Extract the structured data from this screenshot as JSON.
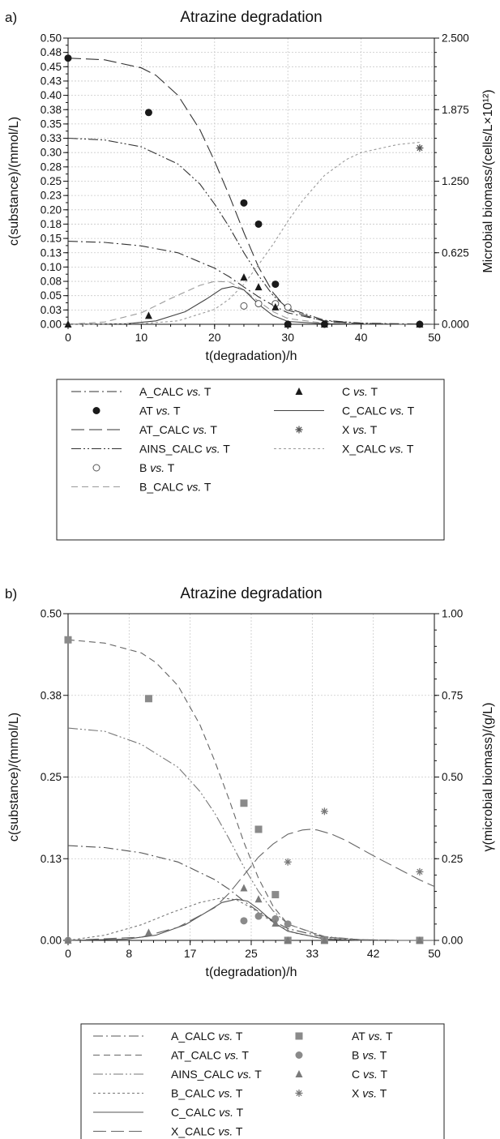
{
  "chart_data": [
    {
      "panel_label": "a)",
      "type": "line",
      "title": "Atrazine degradation",
      "xlabel": "t(degradation)/h",
      "ylabel": "c(substance)/(mmol/L)",
      "y2label": "Microbial biomass/(cells/L×10¹²)",
      "xlim": [
        0,
        50
      ],
      "ylim": [
        0,
        0.5
      ],
      "y2lim": [
        0,
        2.5
      ],
      "xticks": [
        "0",
        "10",
        "20",
        "30",
        "40",
        "50"
      ],
      "yticks": [
        "0.00",
        "0.03",
        "0.05",
        "0.08",
        "0.10",
        "0.13",
        "0.15",
        "0.18",
        "0.20",
        "0.23",
        "0.25",
        "0.28",
        "0.30",
        "0.33",
        "0.35",
        "0.38",
        "0.40",
        "0.43",
        "0.45",
        "0.48",
        "0.50"
      ],
      "y2ticks": [
        "0.000",
        "0.625",
        "1.250",
        "1.875",
        "2.500"
      ],
      "grid": true,
      "legend_position": "below",
      "series": [
        {
          "name": "A_CALC vs. T",
          "kind": "line",
          "axis": "left",
          "dash": "dashdot",
          "color": "#333333",
          "x": [
            0,
            5,
            10,
            15,
            20,
            22,
            24,
            26,
            28,
            30,
            35,
            40,
            45,
            50
          ],
          "y": [
            0.145,
            0.143,
            0.137,
            0.125,
            0.098,
            0.083,
            0.065,
            0.048,
            0.033,
            0.02,
            0.006,
            0.002,
            0.001,
            0.0
          ]
        },
        {
          "name": "AT vs. T",
          "kind": "marker",
          "axis": "left",
          "marker": "filled-circle",
          "color": "#1a1a1a",
          "x": [
            0,
            11,
            24,
            26,
            28.3,
            30,
            35,
            48
          ],
          "y": [
            0.465,
            0.37,
            0.212,
            0.175,
            0.07,
            0.0,
            0.0,
            0.0
          ]
        },
        {
          "name": "AT_CALC vs. T",
          "kind": "line",
          "axis": "left",
          "dash": "longdash",
          "color": "#333333",
          "x": [
            0,
            5,
            10,
            12,
            15,
            18,
            20,
            22,
            24,
            26,
            28,
            30,
            35,
            40,
            45,
            50
          ],
          "y": [
            0.465,
            0.462,
            0.448,
            0.435,
            0.4,
            0.34,
            0.285,
            0.225,
            0.16,
            0.1,
            0.055,
            0.025,
            0.005,
            0.001,
            0.0,
            0.0
          ]
        },
        {
          "name": "AINS_CALC vs. T",
          "kind": "line",
          "axis": "left",
          "dash": "dashdotdot",
          "color": "#333333",
          "x": [
            0,
            5,
            10,
            15,
            18,
            20,
            22,
            24,
            26,
            28,
            30,
            35,
            40,
            45,
            50
          ],
          "y": [
            0.325,
            0.322,
            0.31,
            0.28,
            0.245,
            0.21,
            0.17,
            0.125,
            0.085,
            0.05,
            0.028,
            0.007,
            0.002,
            0.0,
            0.0
          ]
        },
        {
          "name": "B vs. T",
          "kind": "marker",
          "axis": "left",
          "marker": "open-circle",
          "color": "#555555",
          "x": [
            24,
            26,
            28.3,
            30
          ],
          "y": [
            0.032,
            0.036,
            0.036,
            0.03
          ]
        },
        {
          "name": "B_CALC vs. T",
          "kind": "line",
          "axis": "left",
          "dash": "dash",
          "color": "#9a9a9a",
          "x": [
            0,
            5,
            10,
            14,
            18,
            20,
            22,
            24,
            26,
            28,
            30,
            35,
            40,
            50
          ],
          "y": [
            0.0,
            0.004,
            0.02,
            0.045,
            0.068,
            0.075,
            0.074,
            0.06,
            0.04,
            0.022,
            0.01,
            0.002,
            0.0,
            0.0
          ]
        },
        {
          "name": "C vs. T",
          "kind": "marker",
          "axis": "left",
          "marker": "filled-triangle",
          "color": "#1a1a1a",
          "x": [
            0,
            11,
            24,
            26,
            28.3,
            30,
            35,
            48
          ],
          "y": [
            0.0,
            0.015,
            0.082,
            0.065,
            0.03,
            0.0,
            0.0,
            0.0
          ]
        },
        {
          "name": "C_CALC vs. T",
          "kind": "line",
          "axis": "left",
          "dash": "solid",
          "color": "#444444",
          "x": [
            0,
            8,
            12,
            16,
            19,
            21,
            22.5,
            24,
            26,
            28,
            30,
            35,
            40,
            50
          ],
          "y": [
            0.0,
            0.001,
            0.006,
            0.022,
            0.045,
            0.062,
            0.066,
            0.06,
            0.035,
            0.015,
            0.005,
            0.001,
            0.0,
            0.0
          ]
        },
        {
          "name": "X vs. T",
          "kind": "marker",
          "axis": "right",
          "marker": "asterisk",
          "color": "#555555",
          "x": [
            48
          ],
          "y": [
            1.54
          ]
        },
        {
          "name": "X_CALC vs. T",
          "kind": "line",
          "axis": "right",
          "dash": "shortdash",
          "color": "#9a9a9a",
          "x": [
            0,
            10,
            15,
            20,
            22,
            24,
            26,
            28,
            30,
            32,
            35,
            38,
            40,
            45,
            48
          ],
          "y": [
            0.0,
            0.005,
            0.03,
            0.13,
            0.22,
            0.35,
            0.52,
            0.7,
            0.9,
            1.08,
            1.3,
            1.44,
            1.5,
            1.57,
            1.59
          ]
        }
      ]
    },
    {
      "panel_label": "b)",
      "type": "line",
      "title": "Atrazine degradation",
      "xlabel": "t(degradation)/h",
      "ylabel": "c(substance)/(mmol/L)",
      "y2label": "γ(microbial biomass)/(g/L)",
      "xlim": [
        0,
        50
      ],
      "ylim": [
        0,
        0.5
      ],
      "y2lim": [
        0,
        1.0
      ],
      "xticks": [
        "0",
        "8",
        "17",
        "25",
        "33",
        "42",
        "50"
      ],
      "yticks": [
        "0.00",
        "0.13",
        "0.25",
        "0.38",
        "0.50"
      ],
      "y2ticks": [
        "0.00",
        "0.25",
        "0.50",
        "0.75",
        "1.00"
      ],
      "grid": true,
      "legend_position": "below",
      "series": [
        {
          "name": "A_CALC vs. T",
          "kind": "line",
          "axis": "left",
          "dash": "dashdot",
          "color": "#555555",
          "x": [
            0,
            5,
            10,
            15,
            20,
            22,
            24,
            26,
            28,
            30,
            35,
            40,
            45,
            50
          ],
          "y": [
            0.145,
            0.142,
            0.134,
            0.12,
            0.093,
            0.078,
            0.06,
            0.044,
            0.03,
            0.018,
            0.005,
            0.001,
            0.0,
            0.0
          ]
        },
        {
          "name": "AT_CALC vs. T",
          "kind": "line",
          "axis": "left",
          "dash": "dash",
          "color": "#666666",
          "x": [
            0,
            5,
            10,
            12,
            15,
            18,
            20,
            22,
            24,
            26,
            28,
            30,
            35,
            40,
            45,
            50
          ],
          "y": [
            0.46,
            0.455,
            0.44,
            0.425,
            0.39,
            0.33,
            0.275,
            0.215,
            0.15,
            0.095,
            0.052,
            0.025,
            0.005,
            0.001,
            0.0,
            0.0
          ]
        },
        {
          "name": "AINS_CALC vs. T",
          "kind": "line",
          "axis": "left",
          "dash": "dashdotdot",
          "color": "#777777",
          "x": [
            0,
            5,
            10,
            15,
            18,
            20,
            22,
            24,
            26,
            28,
            30,
            35,
            40,
            45,
            50
          ],
          "y": [
            0.325,
            0.32,
            0.3,
            0.265,
            0.228,
            0.195,
            0.155,
            0.112,
            0.075,
            0.045,
            0.025,
            0.006,
            0.001,
            0.0,
            0.0
          ]
        },
        {
          "name": "B_CALC vs. T",
          "kind": "line",
          "axis": "left",
          "dash": "shortdash",
          "color": "#777777",
          "x": [
            0,
            5,
            10,
            14,
            18,
            21,
            23,
            25,
            27,
            29,
            31,
            35,
            40,
            50
          ],
          "y": [
            0.0,
            0.008,
            0.024,
            0.042,
            0.058,
            0.065,
            0.062,
            0.05,
            0.035,
            0.021,
            0.011,
            0.003,
            0.0,
            0.0
          ]
        },
        {
          "name": "C_CALC vs. T",
          "kind": "line",
          "axis": "left",
          "dash": "solid",
          "color": "#555555",
          "x": [
            0,
            8,
            12,
            16,
            19,
            21,
            23,
            24.5,
            26,
            28,
            30,
            35,
            40,
            50
          ],
          "y": [
            0.0,
            0.002,
            0.008,
            0.024,
            0.044,
            0.058,
            0.063,
            0.06,
            0.048,
            0.028,
            0.014,
            0.002,
            0.0,
            0.0
          ]
        },
        {
          "name": "X_CALC vs. T",
          "kind": "line",
          "axis": "right",
          "dash": "longdash",
          "color": "#666666",
          "x": [
            0,
            10,
            15,
            20,
            22,
            24,
            26,
            28,
            30,
            32,
            33,
            34,
            36,
            38,
            40,
            42,
            45,
            48,
            50
          ],
          "y": [
            0.0,
            0.01,
            0.04,
            0.1,
            0.145,
            0.2,
            0.255,
            0.295,
            0.325,
            0.338,
            0.34,
            0.338,
            0.325,
            0.305,
            0.28,
            0.255,
            0.22,
            0.185,
            0.165
          ]
        },
        {
          "name": "AT vs. T",
          "kind": "marker",
          "axis": "left",
          "marker": "filled-square",
          "color": "#8a8a8a",
          "x": [
            0,
            11,
            24,
            26,
            28.3,
            30,
            35,
            48
          ],
          "y": [
            0.46,
            0.37,
            0.21,
            0.17,
            0.07,
            0.0,
            0.0,
            0.0
          ]
        },
        {
          "name": "B vs. T",
          "kind": "marker",
          "axis": "left",
          "marker": "filled-circle",
          "color": "#8a8a8a",
          "x": [
            0,
            24,
            26,
            28.3,
            30
          ],
          "y": [
            0.0,
            0.03,
            0.037,
            0.033,
            0.025
          ]
        },
        {
          "name": "C vs. T",
          "kind": "marker",
          "axis": "left",
          "marker": "filled-triangle",
          "color": "#7a7a7a",
          "x": [
            0,
            11,
            24,
            26,
            28.3,
            30,
            35,
            48
          ],
          "y": [
            0.0,
            0.012,
            0.08,
            0.063,
            0.026,
            0.0,
            0.0,
            0.0
          ]
        },
        {
          "name": "X vs. T",
          "kind": "marker",
          "axis": "right",
          "marker": "asterisk",
          "color": "#777777",
          "x": [
            30,
            35,
            48
          ],
          "y": [
            0.24,
            0.395,
            0.21
          ]
        }
      ]
    }
  ]
}
